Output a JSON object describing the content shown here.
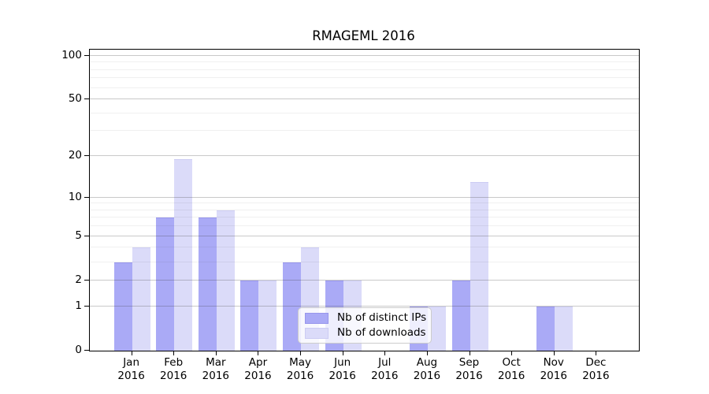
{
  "title": "RMAGEML 2016",
  "chart_data": {
    "type": "bar",
    "title": "RMAGEML 2016",
    "categories": [
      "Jan 2016",
      "Feb 2016",
      "Mar 2016",
      "Apr 2016",
      "May 2016",
      "Jun 2016",
      "Jul 2016",
      "Aug 2016",
      "Sep 2016",
      "Oct 2016",
      "Nov 2016",
      "Dec 2016"
    ],
    "series": [
      {
        "name": "Nb of distinct IPs",
        "color": "#aaaaf6",
        "edge_color": "#9896ec",
        "values": [
          3,
          7,
          7,
          2,
          3,
          2,
          0,
          1,
          2,
          0,
          1,
          0
        ]
      },
      {
        "name": "Nb of downloads",
        "color": "#dbdbf9",
        "edge_color": "#ccccf3",
        "values": [
          4,
          19,
          8,
          2,
          4,
          2,
          0,
          1,
          13,
          0,
          1,
          0
        ]
      }
    ],
    "xlabel": "",
    "ylabel": "",
    "y_axis": {
      "scale": "log10(value+1)",
      "major_ticks": [
        0,
        1,
        2,
        5,
        10,
        20,
        50,
        100
      ],
      "major_tick_labels": [
        "0",
        "1",
        "2",
        "5",
        "10",
        "20",
        "50",
        "100"
      ],
      "minor_ticks": [
        3,
        4,
        6,
        7,
        8,
        9,
        30,
        40,
        60,
        70,
        80,
        90
      ],
      "max_value": 110
    },
    "grid": true,
    "legend_position": "lower center"
  },
  "colors": {
    "figure_background": "#ffffff",
    "axis_border": "#000000",
    "grid_major": "rgba(60,60,60,0.28)",
    "grid_minor": "rgba(60,60,60,0.08)",
    "tick_text": "#000000",
    "legend_background": "rgba(255,255,255,0.8)",
    "legend_border": "#cccccc"
  }
}
